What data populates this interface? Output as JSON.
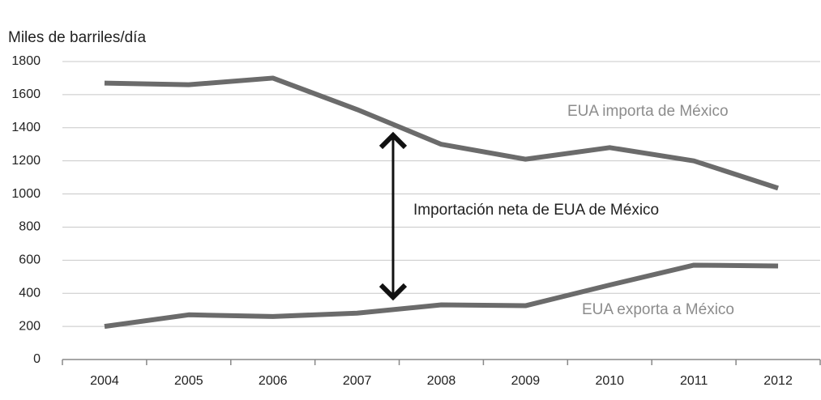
{
  "chart_data": {
    "type": "line",
    "ylabel": "Miles de barriles/día",
    "categories": [
      "2004",
      "2005",
      "2006",
      "2007",
      "2008",
      "2009",
      "2010",
      "2011",
      "2012"
    ],
    "series": [
      {
        "name": "EUA importa de México",
        "color": "#6b6b6b",
        "values": [
          1670,
          1660,
          1700,
          1510,
          1300,
          1210,
          1280,
          1200,
          1035
        ]
      },
      {
        "name": "EUA exporta a México",
        "color": "#6b6b6b",
        "values": [
          200,
          270,
          260,
          280,
          330,
          325,
          450,
          570,
          565
        ]
      }
    ],
    "annotation": "Importación neta de EUA de México",
    "ylim": [
      0,
      1800
    ],
    "yticks": [
      0,
      200,
      400,
      600,
      800,
      1000,
      1200,
      1400,
      1600,
      1800
    ],
    "grid": true
  }
}
